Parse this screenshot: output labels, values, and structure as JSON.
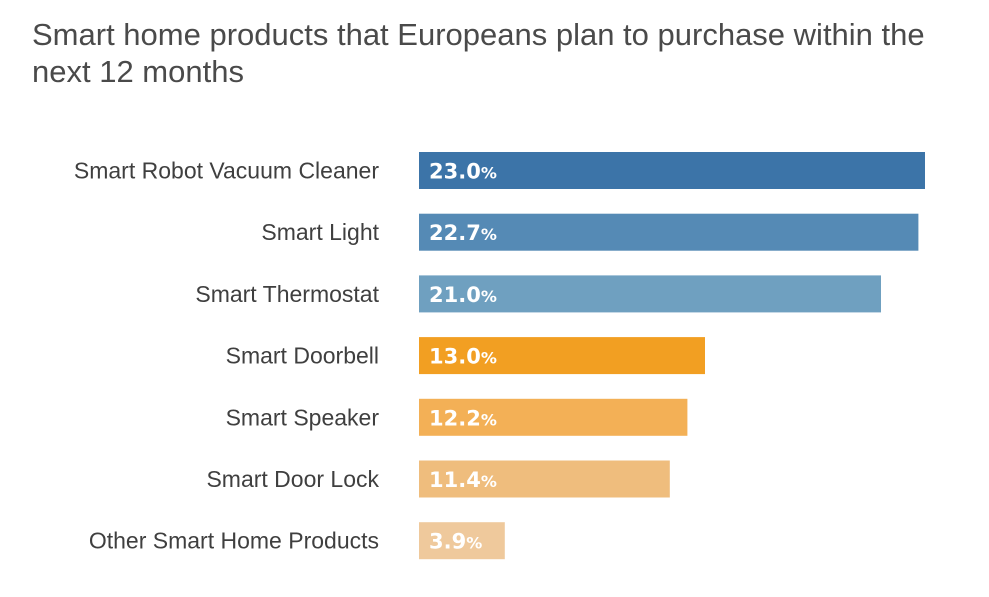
{
  "chart_data": {
    "type": "bar",
    "orientation": "horizontal",
    "title": "Smart home products that Europeans plan to purchase within the next 12 months",
    "xlabel": "",
    "ylabel": "",
    "unit": "%",
    "categories": [
      "Smart Robot Vacuum Cleaner",
      "Smart Light",
      "Smart Thermostat",
      "Smart Doorbell",
      "Smart Speaker",
      "Smart Door Lock",
      "Other Smart Home Products"
    ],
    "values": [
      23.0,
      22.7,
      21.0,
      13.0,
      12.2,
      11.4,
      3.9
    ],
    "value_labels": [
      "23.0",
      "22.7",
      "21.0",
      "13.0",
      "12.2",
      "11.4",
      "3.9"
    ],
    "colors": [
      "#3c74a8",
      "#558ab5",
      "#6fa0c0",
      "#f29f22",
      "#f3b056",
      "#efbd7d",
      "#efc99c"
    ],
    "xlim": [
      0,
      23.0
    ],
    "grid": false,
    "legend": "none"
  }
}
